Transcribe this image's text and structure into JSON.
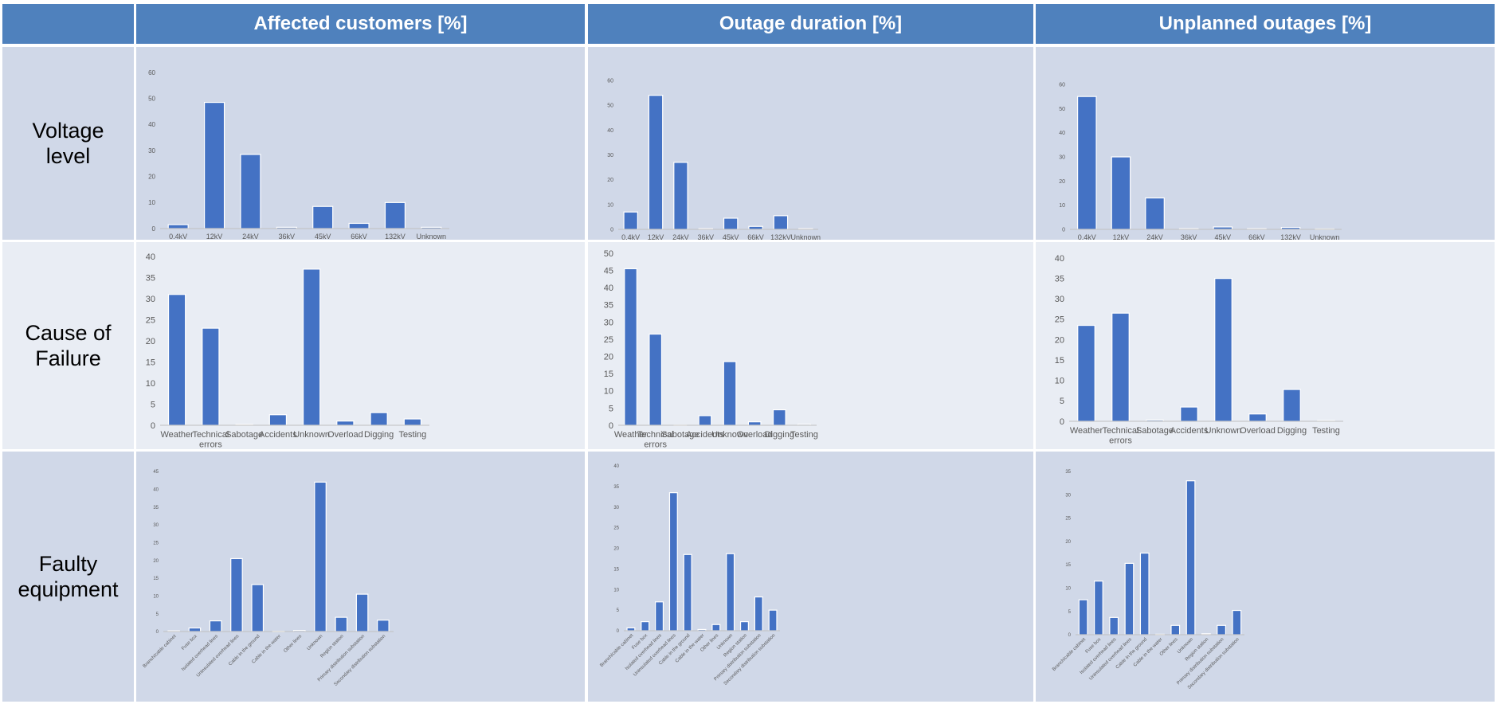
{
  "colors": {
    "header_bg": "#4f81bd",
    "dark_cell": "#d0d8e8",
    "light_cell": "#e9edf4",
    "bar": "#4472c4"
  },
  "columns": [
    "Affected customers [%]",
    "Outage duration [%]",
    "Unplanned outages [%]"
  ],
  "rows": [
    "Voltage\nlevel",
    "Cause of\nFailure",
    "Faulty\nequipment"
  ],
  "chart_data": [
    {
      "id": "voltage-affected",
      "type": "bar",
      "categories": [
        "0.4kV",
        "12kV",
        "24kV",
        "36kV",
        "45kV",
        "66kV",
        "132kV",
        "Unknown"
      ],
      "values": [
        1.5,
        48.5,
        28.5,
        0.5,
        8.5,
        2,
        10,
        0.5
      ],
      "ylim": [
        0,
        60
      ],
      "yticks": [
        0,
        10,
        20,
        30,
        40,
        50,
        60
      ]
    },
    {
      "id": "voltage-duration",
      "type": "bar",
      "categories": [
        "0.4kV",
        "12kV",
        "24kV",
        "36kV",
        "45kV",
        "66kV",
        "132kV",
        "Unknown"
      ],
      "values": [
        7,
        54,
        27,
        0.3,
        4.5,
        1.2,
        5.5,
        0.3
      ],
      "ylim": [
        0,
        60
      ],
      "yticks": [
        0,
        10,
        20,
        30,
        40,
        50,
        60
      ]
    },
    {
      "id": "voltage-unplanned",
      "type": "bar",
      "categories": [
        "0.4kV",
        "12kV",
        "24kV",
        "36kV",
        "45kV",
        "66kV",
        "132kV",
        "Unknown"
      ],
      "values": [
        55,
        30,
        13,
        0.3,
        1,
        0.3,
        0.8,
        0.2
      ],
      "ylim": [
        0,
        60
      ],
      "yticks": [
        0,
        10,
        20,
        30,
        40,
        50,
        60
      ]
    },
    {
      "id": "cause-affected",
      "type": "bar",
      "categories": [
        "Weather",
        "Technical\nerrors",
        "Sabotage",
        "Accidents",
        "Unknown",
        "Overload",
        "Digging",
        "Testing"
      ],
      "values": [
        31,
        23,
        0.2,
        2.5,
        37,
        1,
        3,
        1.5
      ],
      "ylim": [
        0,
        40
      ],
      "yticks": [
        0,
        5,
        10,
        15,
        20,
        25,
        30,
        35,
        40
      ]
    },
    {
      "id": "cause-duration",
      "type": "bar",
      "categories": [
        "Weather",
        "Technical\nerrors",
        "Sabotage",
        "Accidents",
        "Unknown",
        "Overload",
        "Digging",
        "Testing"
      ],
      "values": [
        45.5,
        26.5,
        0.1,
        2.8,
        18.5,
        1,
        4.5,
        0.3
      ],
      "ylim": [
        0,
        50
      ],
      "yticks": [
        0,
        5,
        10,
        15,
        20,
        25,
        30,
        35,
        40,
        45,
        50
      ]
    },
    {
      "id": "cause-unplanned",
      "type": "bar",
      "categories": [
        "Weather",
        "Technical\nerrors",
        "Sabotage",
        "Accidents",
        "Unknown",
        "Overload",
        "Digging",
        "Testing"
      ],
      "values": [
        23.5,
        26.5,
        0.3,
        3.5,
        35,
        1.8,
        7.8,
        0.2
      ],
      "ylim": [
        0,
        40
      ],
      "yticks": [
        0,
        5,
        10,
        15,
        20,
        25,
        30,
        35,
        40
      ]
    },
    {
      "id": "equipment-affected",
      "type": "bar",
      "categories": [
        "Branch/cable cabinet",
        "Fuse box",
        "Isolated overhead lines",
        "Uninsulated overhead lines",
        "Cable in the ground",
        "Cable in the water",
        "Other lines",
        "Unknown",
        "Region station",
        "Primary distribution substation",
        "Secondary distribution substation"
      ],
      "values": [
        0.2,
        1,
        3,
        20.5,
        13.2,
        0.1,
        0.3,
        42,
        4,
        10.5,
        3.2
      ],
      "ylim": [
        0,
        45
      ],
      "yticks": [
        0,
        5,
        10,
        15,
        20,
        25,
        30,
        35,
        40,
        45
      ]
    },
    {
      "id": "equipment-duration",
      "type": "bar",
      "categories": [
        "Branch/cable cabinet",
        "Fuse box",
        "Isolated overhead lines",
        "Uninsulated overhead lines",
        "Cable in the ground",
        "Cable in the water",
        "Other lines",
        "Unknown",
        "Region station",
        "Primary distribution substation",
        "Secondary distribution substation"
      ],
      "values": [
        0.7,
        2.2,
        7,
        33.5,
        18.5,
        0.3,
        1.5,
        18.7,
        2.2,
        8.2,
        5
      ],
      "ylim": [
        0,
        40
      ],
      "yticks": [
        0,
        5,
        10,
        15,
        20,
        25,
        30,
        35,
        40
      ]
    },
    {
      "id": "equipment-unplanned",
      "type": "bar",
      "categories": [
        "Branch/cable cabinet",
        "Fuse box",
        "Isolated overhead lines",
        "Uninsulated overhead lines",
        "Cable in the ground",
        "Cable in the water",
        "Other lines",
        "Unknown",
        "Region station",
        "Primary distribution substation",
        "Secondary distribution substation"
      ],
      "values": [
        7.5,
        11.5,
        3.7,
        15.3,
        17.5,
        0.1,
        2,
        33,
        0.2,
        2,
        5.2
      ],
      "ylim": [
        0,
        35
      ],
      "yticks": [
        0,
        5,
        10,
        15,
        20,
        25,
        30,
        35
      ]
    }
  ]
}
